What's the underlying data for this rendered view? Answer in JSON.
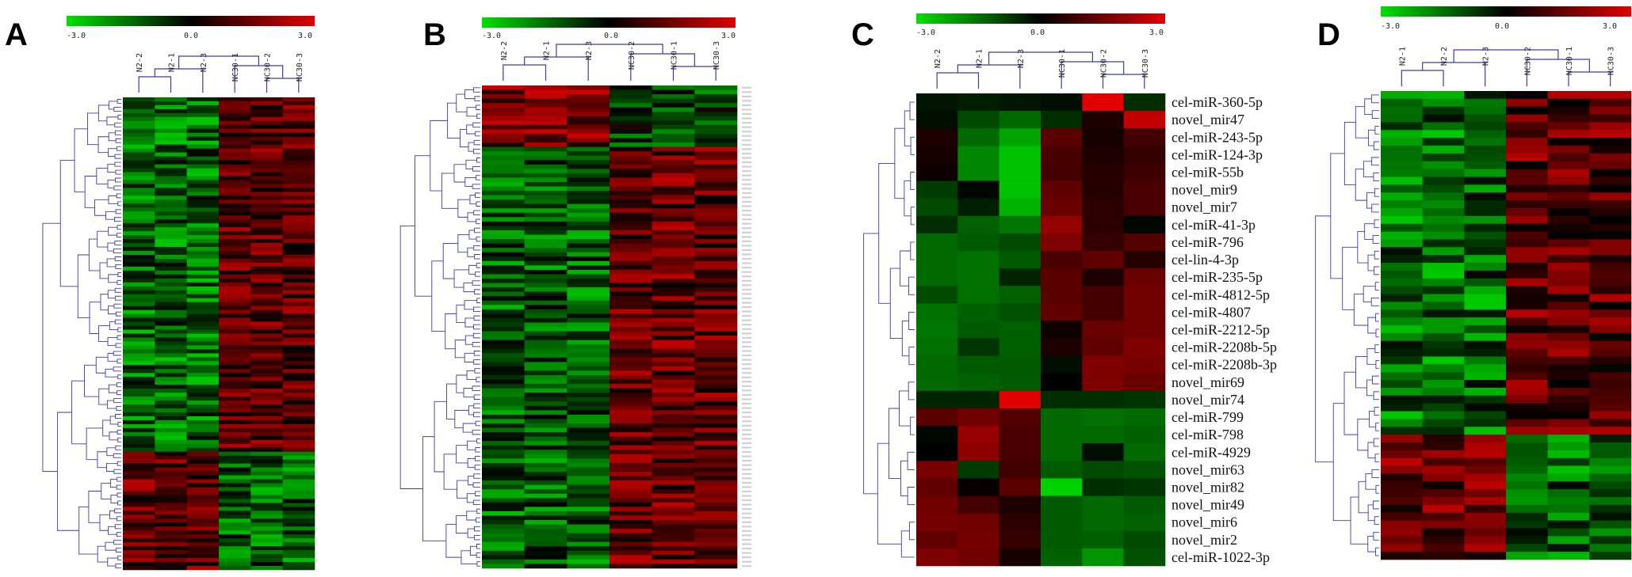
{
  "colorbar": {
    "min_label": "-3.0",
    "mid_label": "0.0",
    "max_label": "3.0"
  },
  "colors": {
    "low": "#00e000",
    "mid": "#000000",
    "high": "#e00000",
    "dendrogram": "#3c3ca8"
  },
  "chart_data": [
    {
      "type": "heatmap",
      "panel": "A",
      "columns": [
        "N2-2",
        "N2-1",
        "N2-3",
        "NC30-1",
        "NC30-2",
        "NC30-3"
      ],
      "color_scale": [
        -3.0,
        0.0,
        3.0
      ],
      "row_labels": [],
      "num_rows": 120,
      "pattern": "upper ~75% of rows low in N2 (green) and high in NC30 (red); lower ~25% reversed"
    },
    {
      "type": "heatmap",
      "panel": "B",
      "columns": [
        "N2-2",
        "N2-1",
        "N2-3",
        "NC30-2",
        "NC30-1",
        "NC30-3"
      ],
      "color_scale": [
        -3.0,
        0.0,
        3.0
      ],
      "row_labels": [],
      "num_rows": 110,
      "pattern": "top ~12% of rows high in N2 and low in NC30; remainder mostly low in N2 and high in NC30"
    },
    {
      "type": "heatmap",
      "panel": "C",
      "columns": [
        "N2-2",
        "N2-1",
        "N2-3",
        "NC30-1",
        "NC30-2",
        "NC30-3"
      ],
      "color_scale": [
        -3.0,
        0.0,
        3.0
      ],
      "row_labels": [
        "cel-miR-360-5p",
        "novel_mir47",
        "cel-miR-243-5p",
        "cel-miR-124-3p",
        "cel-miR-55b",
        "novel_mir9",
        "novel_mir7",
        "cel-miR-41-3p",
        "cel-miR-796",
        "cel-lin-4-3p",
        "cel-miR-235-5p",
        "cel-miR-4812-5p",
        "cel-miR-4807",
        "cel-miR-2212-5p",
        "cel-miR-2208b-5p",
        "cel-miR-2208b-3p",
        "novel_mir69",
        "novel_mir74",
        "cel-miR-799",
        "cel-miR-798",
        "cel-miR-4929",
        "novel_mir63",
        "novel_mir82",
        "novel_mir49",
        "novel_mir6",
        "novel_mir2",
        "cel-miR-1022-3p"
      ],
      "values": [
        [
          -0.3,
          -0.4,
          -0.3,
          -0.2,
          3.0,
          -0.6
        ],
        [
          -0.2,
          -1.0,
          -1.4,
          -0.6,
          0.4,
          2.6
        ],
        [
          0.4,
          -1.4,
          -2.2,
          1.2,
          0.3,
          0.9
        ],
        [
          0.3,
          -1.8,
          -2.6,
          1.0,
          0.4,
          0.7
        ],
        [
          0.2,
          -1.8,
          -2.6,
          0.9,
          0.5,
          0.8
        ],
        [
          -0.8,
          -0.1,
          -2.6,
          1.3,
          0.5,
          1.0
        ],
        [
          -1.0,
          -0.4,
          -2.4,
          1.4,
          0.6,
          1.0
        ],
        [
          -0.6,
          -1.3,
          -1.6,
          2.0,
          0.6,
          -0.1
        ],
        [
          -1.4,
          -1.2,
          -1.0,
          1.7,
          0.7,
          1.1
        ],
        [
          -1.4,
          -1.5,
          -1.2,
          1.0,
          1.3,
          0.5
        ],
        [
          -1.4,
          -1.5,
          -0.5,
          1.2,
          0.4,
          1.4
        ],
        [
          -1.0,
          -1.5,
          -1.3,
          1.2,
          0.9,
          1.5
        ],
        [
          -1.5,
          -1.3,
          -1.1,
          1.3,
          0.9,
          1.5
        ],
        [
          -1.6,
          -1.2,
          -1.3,
          0.2,
          1.4,
          1.5
        ],
        [
          -1.5,
          -0.7,
          -1.3,
          0.4,
          1.3,
          1.7
        ],
        [
          -1.4,
          -1.2,
          -1.2,
          -0.2,
          1.7,
          1.6
        ],
        [
          -1.4,
          -1.3,
          -1.2,
          0.0,
          1.7,
          1.4
        ],
        [
          -0.5,
          -0.5,
          3.0,
          -0.6,
          -0.6,
          -0.7
        ],
        [
          1.2,
          1.5,
          1.1,
          -1.4,
          -1.5,
          -1.4
        ],
        [
          -0.1,
          2.0,
          1.0,
          -1.4,
          -1.4,
          -1.3
        ],
        [
          0.0,
          1.9,
          1.0,
          -1.4,
          -0.2,
          -1.4
        ],
        [
          1.6,
          -0.8,
          0.9,
          -1.2,
          -1.0,
          -1.1
        ],
        [
          1.3,
          0.1,
          1.2,
          -2.8,
          -0.6,
          -0.7
        ],
        [
          1.5,
          0.9,
          0.4,
          -1.2,
          -1.4,
          -1.2
        ],
        [
          1.6,
          1.5,
          0.6,
          -1.2,
          -1.4,
          -1.3
        ],
        [
          1.3,
          1.6,
          0.7,
          -1.2,
          -1.3,
          -1.0
        ],
        [
          1.7,
          1.5,
          0.3,
          -1.3,
          -2.0,
          -1.1
        ]
      ]
    },
    {
      "type": "heatmap",
      "panel": "D",
      "columns": [
        "N2-1",
        "N2-2",
        "N2-3",
        "NC30-2",
        "NC30-1",
        "NC30-3"
      ],
      "color_scale": [
        -3.0,
        0.0,
        3.0
      ],
      "row_labels": [],
      "num_rows": 60,
      "pattern": "upper ~73% of rows low in N2 and high in NC30; lower ~27% high in N2 and low in NC30"
    }
  ]
}
